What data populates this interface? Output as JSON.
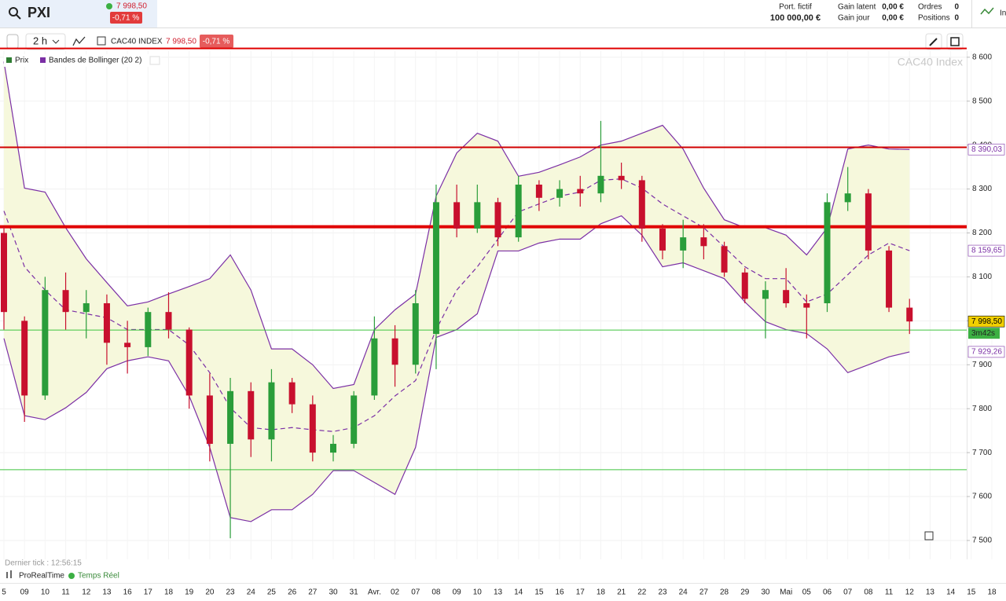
{
  "header": {
    "symbol": "PXI",
    "price": "7 998,50",
    "change": "-0,71 %",
    "portfolio_label": "Port. fictif",
    "portfolio_value": "100 000,00 €",
    "gain_latent_label": "Gain latent",
    "gain_latent_value": "0,00 €",
    "gain_jour_label": "Gain jour",
    "gain_jour_value": "0,00 €",
    "orders_label": "Ordres",
    "orders_value": "0",
    "positions_label": "Positions",
    "positions_value": "0",
    "extra": "In"
  },
  "toolbar": {
    "interval": "2 h",
    "instrument": "CAC40 INDEX",
    "price": "7 998,50",
    "change": "-0,71 %"
  },
  "footer": {
    "last_tick": "Dernier tick : 12:56:15",
    "provider": "ProRealTime",
    "status": "Temps Réel"
  },
  "chart_data": {
    "type": "candlestick",
    "watermark": "CAC40 Index",
    "categories": [
      "5",
      "09",
      "10",
      "11",
      "12",
      "13",
      "16",
      "17",
      "18",
      "19",
      "20",
      "23",
      "24",
      "25",
      "26",
      "27",
      "30",
      "31",
      "Avr.",
      "02",
      "07",
      "08",
      "09",
      "10",
      "13",
      "14",
      "15",
      "16",
      "17",
      "18",
      "21",
      "22",
      "23",
      "24",
      "27",
      "28",
      "29",
      "30",
      "Mai",
      "05",
      "06",
      "07",
      "08",
      "11",
      "12",
      "13",
      "14",
      "15",
      "18"
    ],
    "ylim": [
      7457,
      8614
    ],
    "yticks": [
      {
        "value": 8600,
        "label": "8 600"
      },
      {
        "value": 8500,
        "label": "8 500"
      },
      {
        "value": 8400,
        "label": "8 400"
      },
      {
        "value": 8300,
        "label": "8 300"
      },
      {
        "value": 8200,
        "label": "8 200"
      },
      {
        "value": 8100,
        "label": "8 100"
      },
      {
        "value": 8000,
        "label": "8 000"
      },
      {
        "value": 7900,
        "label": "7 900"
      },
      {
        "value": 7800,
        "label": "7 800"
      },
      {
        "value": 7700,
        "label": "7 700"
      },
      {
        "value": 7600,
        "label": "7 600"
      },
      {
        "value": 7500,
        "label": "7 500"
      }
    ],
    "grid": true,
    "series": [
      {
        "name": "Prix",
        "color": "#2e7d32",
        "up_color": "#2a9d3a",
        "down_color": "#c8102e",
        "open": [
          8200,
          8000,
          7830,
          8070,
          8020,
          8040,
          7950,
          7940,
          8020,
          7980,
          7830,
          7720,
          7840,
          7730,
          7860,
          7810,
          7700,
          7720,
          7830,
          7960,
          7900,
          7970,
          8270,
          8210,
          8270,
          8190,
          8310,
          8280,
          8300,
          8290,
          8330,
          8320,
          8210,
          8160,
          8190,
          8170,
          8110,
          8050,
          8070,
          8040,
          8040,
          8270,
          8290,
          8160,
          8030,
          null,
          null,
          null,
          null
        ],
        "high": [
          8215,
          8010,
          8100,
          8110,
          8070,
          8060,
          8000,
          8030,
          8065,
          7985,
          7880,
          7870,
          7860,
          7890,
          7870,
          7830,
          7740,
          7840,
          8010,
          7990,
          8070,
          8310,
          8310,
          8310,
          8280,
          8330,
          8320,
          8320,
          8330,
          8455,
          8360,
          8330,
          8220,
          8230,
          8220,
          8180,
          8120,
          8090,
          8120,
          8060,
          8290,
          8350,
          8300,
          8170,
          8050,
          null,
          null,
          null,
          null
        ],
        "low": [
          7980,
          7770,
          7820,
          7980,
          7960,
          7900,
          7880,
          7920,
          7960,
          7800,
          7680,
          7505,
          7690,
          7680,
          7790,
          7680,
          7680,
          7710,
          7820,
          7850,
          7880,
          7890,
          8190,
          8200,
          8170,
          8180,
          8250,
          8260,
          8260,
          8270,
          8300,
          8180,
          8140,
          8120,
          8140,
          8100,
          8040,
          7960,
          8030,
          7960,
          8020,
          8250,
          8140,
          8020,
          7970,
          null,
          null,
          null,
          null
        ],
        "close": [
          8020,
          7830,
          8070,
          8020,
          8040,
          7950,
          7940,
          8020,
          7980,
          7830,
          7720,
          7840,
          7730,
          7860,
          7810,
          7700,
          7720,
          7830,
          7960,
          7900,
          8040,
          8270,
          8210,
          8270,
          8190,
          8310,
          8280,
          8300,
          8290,
          8330,
          8320,
          8210,
          8160,
          8190,
          8170,
          8110,
          8050,
          8070,
          8040,
          8030,
          8270,
          8290,
          8160,
          8030,
          7998.5,
          null,
          null,
          null,
          null
        ]
      },
      {
        "name": "Bandes de Bollinger (20 2)",
        "color": "#7b2fa5",
        "fill": "#f6f8dc",
        "upper": [
          8590,
          8302,
          8293,
          8212,
          8141,
          8087,
          8034,
          8043,
          8061,
          8078,
          8096,
          8150,
          8070,
          7936,
          7936,
          7900,
          7846,
          7855,
          7980,
          8025,
          8061,
          8284,
          8382,
          8427,
          8409,
          8329,
          8338,
          8355,
          8373,
          8400,
          8409,
          8427,
          8445,
          8391,
          8302,
          8230,
          8212,
          8212,
          8195,
          8150,
          8212,
          8391,
          8400,
          8391,
          8390.03,
          null,
          null,
          null,
          null
        ],
        "middle": [
          8250,
          8123,
          8070,
          8025,
          8016,
          8007,
          7980,
          7980,
          7980,
          7945,
          7882,
          7802,
          7757,
          7752,
          7757,
          7752,
          7748,
          7757,
          7784,
          7829,
          7864,
          7980,
          8070,
          8123,
          8186,
          8248,
          8266,
          8284,
          8293,
          8320,
          8323,
          8302,
          8266,
          8239,
          8212,
          8168,
          8123,
          8096,
          8096,
          8043,
          8061,
          8105,
          8150,
          8177,
          8159.65,
          null,
          null,
          null,
          null
        ],
        "lower": [
          7960,
          7784,
          7775,
          7802,
          7837,
          7891,
          7909,
          7918,
          7909,
          7829,
          7712,
          7552,
          7543,
          7570,
          7570,
          7605,
          7659,
          7659,
          7632,
          7605,
          7712,
          7962,
          7980,
          8016,
          8159,
          8159,
          8177,
          8186,
          8186,
          8221,
          8239,
          8195,
          8123,
          8132,
          8114,
          8096,
          8043,
          7998,
          7980,
          7971,
          7936,
          7882,
          7900,
          7918,
          7929.26,
          null,
          null,
          null,
          null
        ]
      }
    ],
    "levels": [
      {
        "value": 8620,
        "color": "#e00000",
        "width": 2
      },
      {
        "value": 8395,
        "color": "#d00000",
        "width": 2
      },
      {
        "value": 8214,
        "color": "#e00000",
        "width": 4
      },
      {
        "value": 7979,
        "color": "#3ec43e",
        "width": 1
      },
      {
        "value": 7661,
        "color": "#3ec43e",
        "width": 1
      }
    ],
    "price_labels": [
      {
        "value": 8390.03,
        "label": "8 390,03",
        "color": "#7b2fa5",
        "background": "#ffffff"
      },
      {
        "value": 8159.65,
        "label": "8 159,65",
        "color": "#7b2fa5",
        "background": "#ffffff"
      },
      {
        "value": 7998.5,
        "label": "7 998,50",
        "color": "#000000",
        "background": "#f2d000"
      },
      {
        "value": 7929.26,
        "label": "7 929,26",
        "color": "#7b2fa5",
        "background": "#ffffff"
      }
    ],
    "countdown": "3m42s",
    "countdown_color": "#3cb043"
  }
}
